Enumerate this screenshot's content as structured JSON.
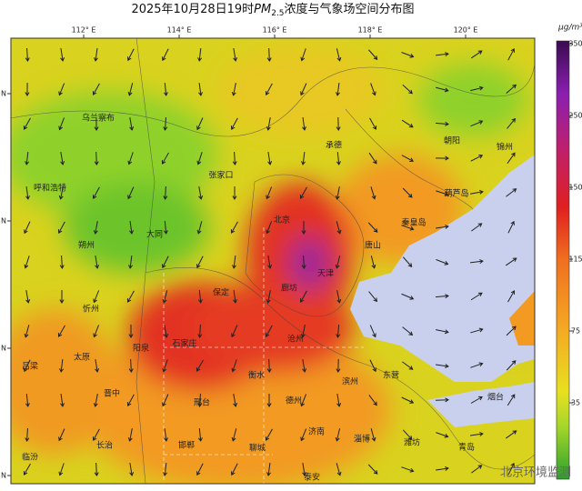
{
  "title": {
    "date": "2025年10月28日19时",
    "species": "PM",
    "subscript": "2.5",
    "rest": "浓度与气象场空间分布图"
  },
  "lon_ticks": [
    "112° E",
    "114° E",
    "116° E",
    "118° E",
    "120° E"
  ],
  "lat_ticks": [
    "N",
    "N",
    "N",
    "N"
  ],
  "colorbar": {
    "unit": "μg/m³",
    "ticks": [
      350,
      250,
      150,
      115,
      75,
      35
    ]
  },
  "cities": [
    "乌兰察布",
    "呼和浩特",
    "张家口",
    "承德",
    "朝阳",
    "锦州",
    "葫芦岛",
    "北京",
    "秦皇岛",
    "大同",
    "朔州",
    "唐山",
    "天津",
    "廊坊",
    "保定",
    "忻州",
    "沧州",
    "阳泉",
    "石家庄",
    "太原",
    "衡水",
    "滨州",
    "东营",
    "吕梁",
    "晋中",
    "邢台",
    "德州",
    "烟台",
    "长治",
    "邯郸",
    "聊城",
    "济南",
    "淄博",
    "潍坊",
    "青岛",
    "临汾",
    "泰安"
  ],
  "watermark": "北京环境监测"
}
